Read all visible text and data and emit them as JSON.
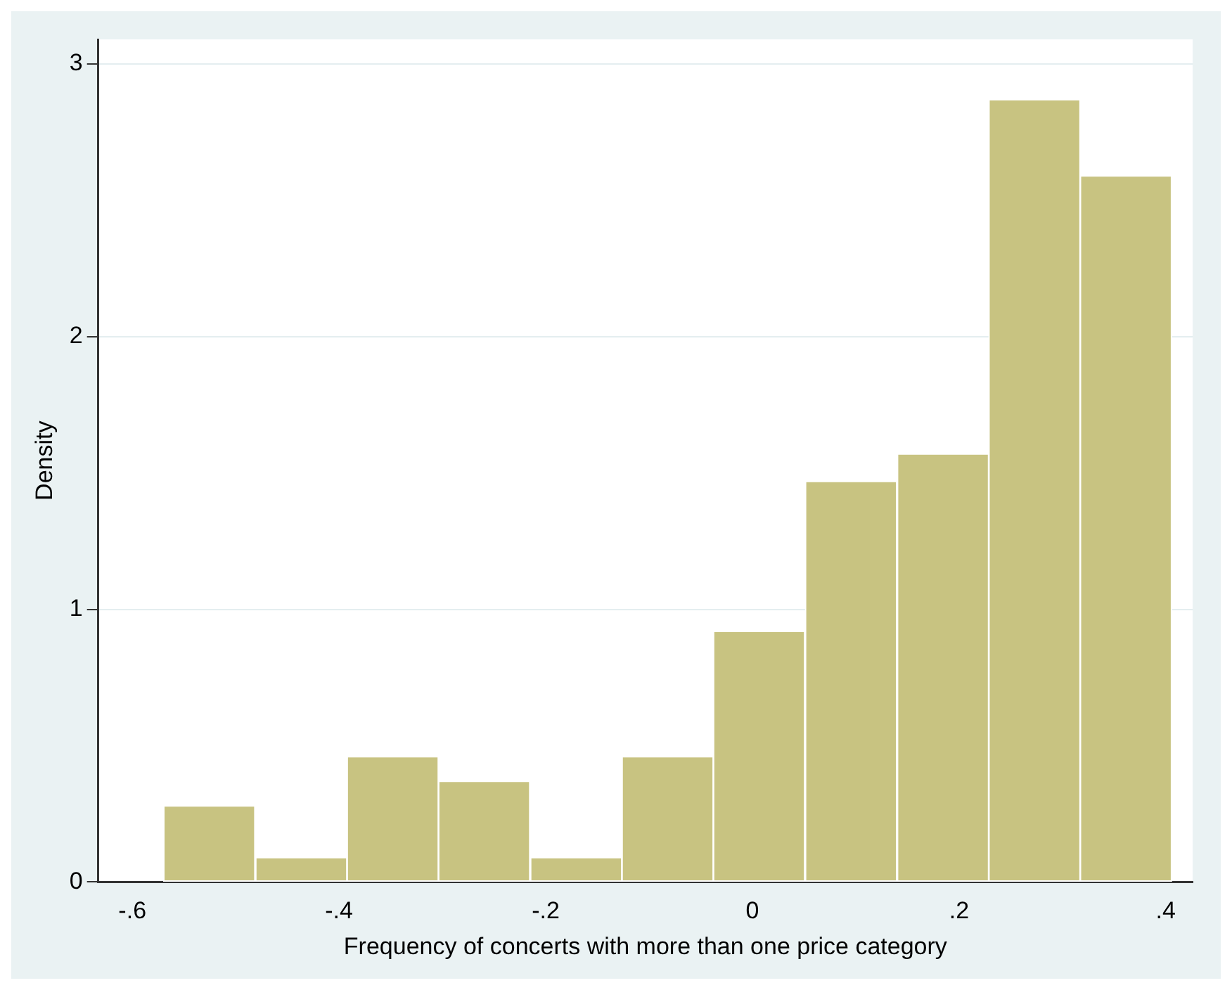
{
  "chart_data": {
    "type": "histogram",
    "xlabel": "Frequency of concerts with more than one price category",
    "ylabel": "Density",
    "bins": [
      -0.57,
      -0.481,
      -0.392,
      -0.304,
      -0.215,
      -0.126,
      -0.038,
      0.051,
      0.14,
      0.229,
      0.317,
      0.406
    ],
    "values": [
      0.28,
      0.09,
      0.46,
      0.37,
      0.09,
      0.46,
      0.92,
      1.47,
      1.57,
      2.87,
      2.59
    ],
    "color": "#c8c381",
    "xlim": [
      -0.633,
      0.426
    ],
    "xticks": [
      {
        "value": -0.6,
        "label": "-.6"
      },
      {
        "value": -0.4,
        "label": "-.4"
      },
      {
        "value": -0.2,
        "label": "-.2"
      },
      0,
      {
        "value": 0.2,
        "label": ".2"
      },
      {
        "value": 0.4,
        "label": ".4"
      }
    ],
    "ylim": [
      0,
      3.09
    ],
    "yticks": [
      0,
      1,
      2,
      3
    ],
    "grid": "y"
  }
}
